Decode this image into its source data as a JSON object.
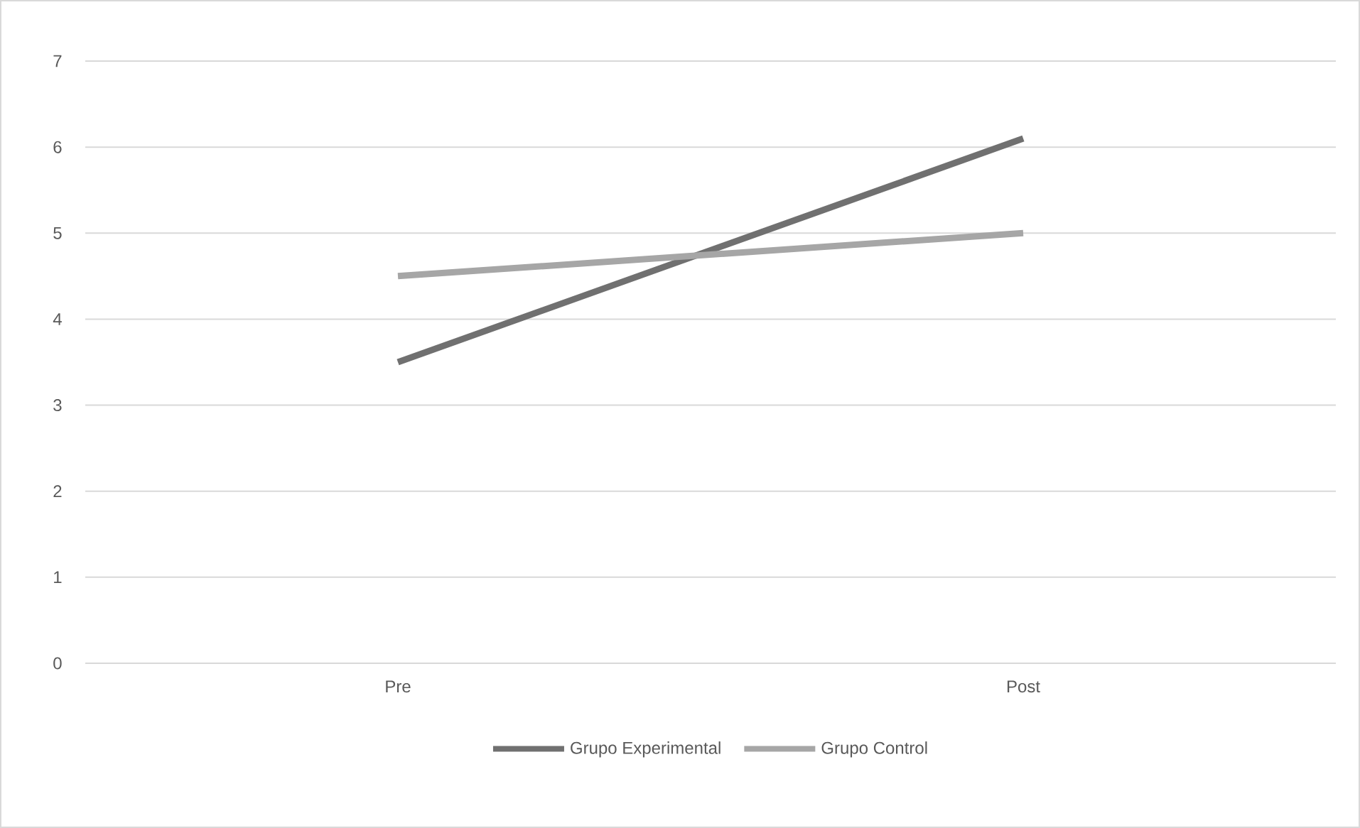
{
  "chart_data": {
    "type": "line",
    "categories": [
      "Pre",
      "Post"
    ],
    "series": [
      {
        "name": "Grupo Experimental",
        "color": "#707070",
        "values": [
          3.5,
          6.1
        ]
      },
      {
        "name": "Grupo Control",
        "color": "#a6a6a6",
        "values": [
          4.5,
          5.0
        ]
      }
    ],
    "ylim": [
      0,
      7
    ],
    "yticks": [
      0,
      1,
      2,
      3,
      4,
      5,
      6,
      7
    ],
    "grid": "y",
    "legend": "bottom",
    "marker": "none",
    "line_style": "solid"
  }
}
